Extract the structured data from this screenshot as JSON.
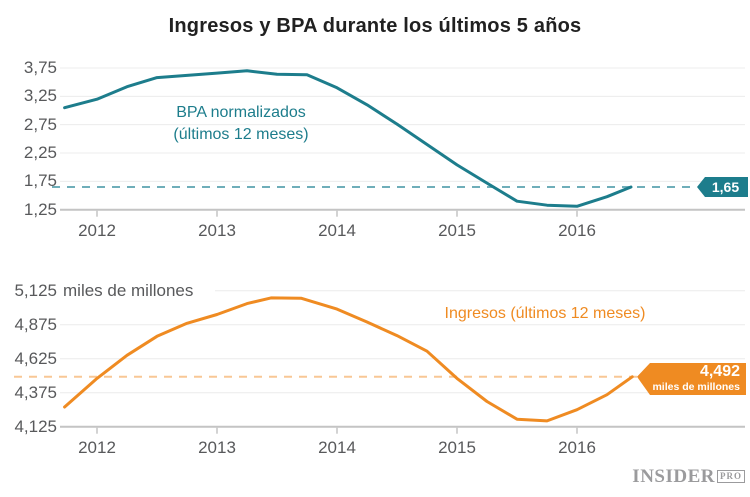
{
  "title": "Ingresos y BPA durante los últimos 5 años",
  "colors": {
    "bpa_line": "#1d7d8c",
    "bpa_dash": "#6faeb9",
    "ingresos_line": "#ef8b22",
    "ingresos_dash": "#f8c795",
    "grid": "#ececec",
    "axis": "#c4c4c4",
    "label_text": "#58595b",
    "title_text": "#212121",
    "logo_gray": "#9b9b9d"
  },
  "logo": {
    "name": "INSIDER",
    "suffix": "PRO"
  },
  "chart_data": [
    {
      "type": "line",
      "series_name": "BPA normalizados (últimos 12 meses)",
      "annotation_lines": [
        "BPA normalizados",
        "(últimos 12 meses)"
      ],
      "color": "#1d7d8c",
      "dash_color": "#6faeb9",
      "x": [
        2011.73,
        2012.0,
        2012.25,
        2012.5,
        2012.75,
        2013.0,
        2013.25,
        2013.5,
        2013.75,
        2014.0,
        2014.25,
        2014.5,
        2014.75,
        2015.0,
        2015.25,
        2015.5,
        2015.75,
        2016.0,
        2016.25,
        2016.45
      ],
      "values": [
        3.05,
        3.2,
        3.42,
        3.58,
        3.62,
        3.66,
        3.7,
        3.64,
        3.63,
        3.4,
        3.1,
        2.76,
        2.4,
        2.04,
        1.72,
        1.4,
        1.33,
        1.31,
        1.48,
        1.65
      ],
      "xticks": [
        2012,
        2013,
        2014,
        2015,
        2016
      ],
      "xtick_labels": [
        "2012",
        "2013",
        "2014",
        "2015",
        "2016"
      ],
      "yticks": [
        1.25,
        1.75,
        2.25,
        2.75,
        3.25,
        3.75
      ],
      "ytick_labels": [
        "1,25",
        "1,75",
        "2,25",
        "2,75",
        "3,25",
        "3,75"
      ],
      "ytick_unit": null,
      "ylim": [
        1.25,
        3.75
      ],
      "xlim": [
        2011.7,
        2017.4
      ],
      "grid": true,
      "legend": "inline-annotation",
      "marker": {
        "value": 1.65,
        "label": "1,65",
        "sublabel": null
      }
    },
    {
      "type": "line",
      "series_name": "Ingresos (últimos 12 meses)",
      "annotation_lines": [
        "Ingresos (últimos 12 meses)"
      ],
      "color": "#ef8b22",
      "dash_color": "#f8c795",
      "x": [
        2011.73,
        2012.0,
        2012.25,
        2012.5,
        2012.75,
        2013.0,
        2013.25,
        2013.45,
        2013.7,
        2014.0,
        2014.25,
        2014.5,
        2014.75,
        2015.0,
        2015.25,
        2015.5,
        2015.75,
        2016.0,
        2016.25,
        2016.46
      ],
      "values": [
        4270,
        4480,
        4650,
        4790,
        4885,
        4950,
        5030,
        5072,
        5070,
        4990,
        4895,
        4795,
        4680,
        4480,
        4310,
        4180,
        4168,
        4250,
        4360,
        4492
      ],
      "xticks": [
        2012,
        2013,
        2014,
        2015,
        2016
      ],
      "xtick_labels": [
        "2012",
        "2013",
        "2014",
        "2015",
        "2016"
      ],
      "yticks": [
        4125,
        4375,
        4625,
        4875,
        5125
      ],
      "ytick_labels": [
        "4,125",
        "4,375",
        "4,625",
        "4,875",
        "5,125"
      ],
      "ytick_unit": "miles de millones",
      "ylim": [
        4125,
        5125
      ],
      "xlim": [
        2011.7,
        2017.4
      ],
      "grid": true,
      "legend": "inline-annotation",
      "marker": {
        "value": 4492,
        "label": "4,492",
        "sublabel": "miles de millones"
      }
    }
  ]
}
